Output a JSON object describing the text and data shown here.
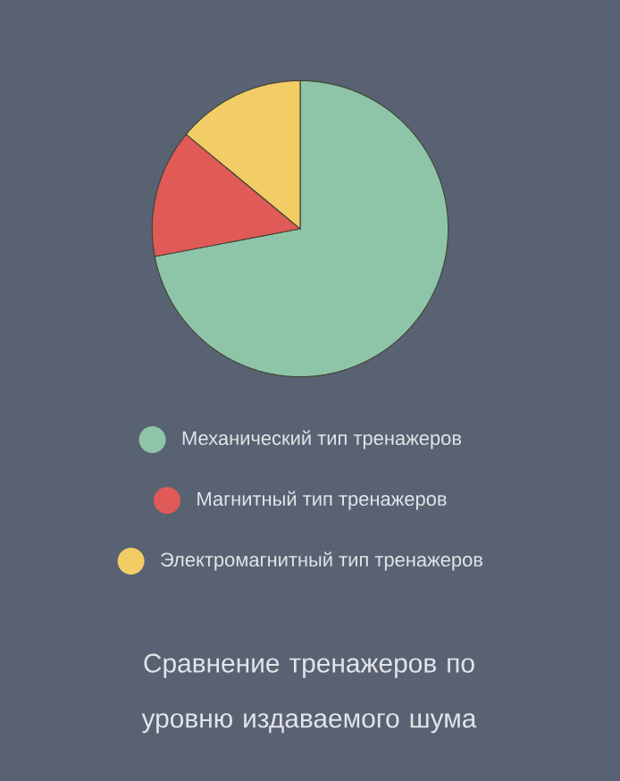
{
  "chart_data": {
    "type": "pie",
    "title": "Сравнение тренажеров по уровню издаваемого шума",
    "categories": [
      "Механический тип тренажеров",
      "Магнитный тип тренажеров",
      "Электромагнитный тип тренажеров"
    ],
    "values": [
      72,
      14,
      14
    ],
    "colors": [
      "#8ec5a8",
      "#e05a57",
      "#f2cd65"
    ],
    "legend": "bottom"
  }
}
